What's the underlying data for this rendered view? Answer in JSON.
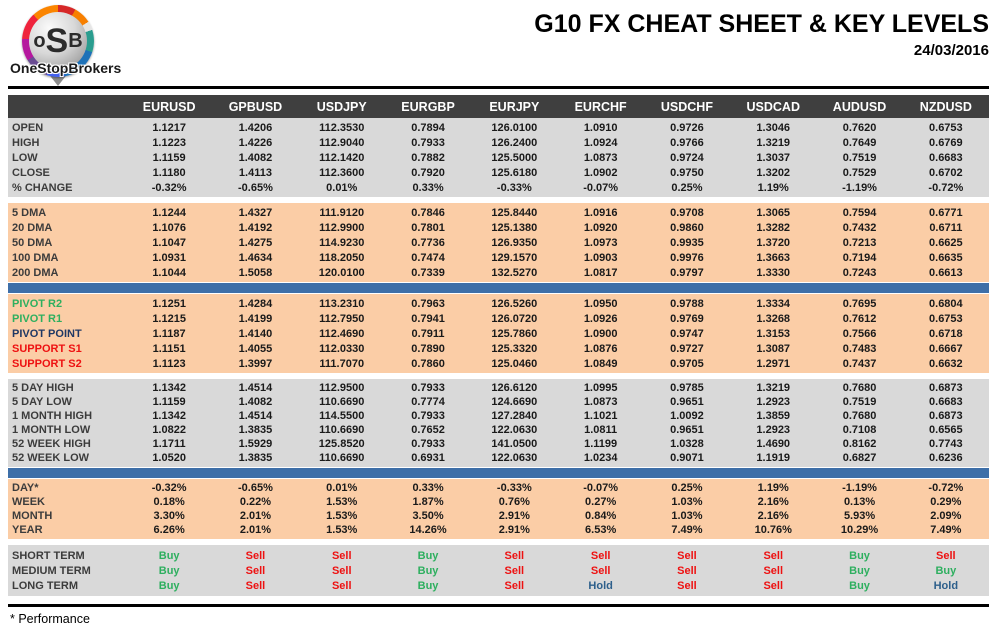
{
  "header": {
    "logo_monogram": {
      "o": "o",
      "s": "S",
      "b": "B"
    },
    "brand": "OneStopBrokers",
    "title": "G10 FX CHEAT SHEET & KEY LEVELS",
    "date": "24/03/2016"
  },
  "table": {
    "columns": [
      "EURUSD",
      "GPBUSD",
      "USDJPY",
      "EURGBP",
      "EURJPY",
      "EURCHF",
      "USDCHF",
      "USDCAD",
      "AUDUSD",
      "NZDUSD"
    ],
    "sections": [
      {
        "id": "ohlc",
        "bg": "gray",
        "separator_after": "white",
        "rows": [
          {
            "label": "OPEN",
            "values": [
              "1.1217",
              "1.4206",
              "112.3530",
              "0.7894",
              "126.0100",
              "1.0910",
              "0.9726",
              "1.3046",
              "0.7620",
              "0.6753"
            ]
          },
          {
            "label": "HIGH",
            "values": [
              "1.1223",
              "1.4226",
              "112.9040",
              "0.7933",
              "126.2400",
              "1.0924",
              "0.9766",
              "1.3219",
              "0.7649",
              "0.6769"
            ]
          },
          {
            "label": "LOW",
            "values": [
              "1.1159",
              "1.4082",
              "112.1420",
              "0.7882",
              "125.5000",
              "1.0873",
              "0.9724",
              "1.3037",
              "0.7519",
              "0.6683"
            ]
          },
          {
            "label": "CLOSE",
            "values": [
              "1.1180",
              "1.4113",
              "112.3600",
              "0.7920",
              "125.6180",
              "1.0902",
              "0.9750",
              "1.3202",
              "0.7529",
              "0.6702"
            ]
          },
          {
            "label": "% CHANGE",
            "values": [
              "-0.32%",
              "-0.65%",
              "0.01%",
              "0.33%",
              "-0.33%",
              "-0.07%",
              "0.25%",
              "1.19%",
              "-1.19%",
              "-0.72%"
            ]
          }
        ]
      },
      {
        "id": "dma",
        "bg": "peach",
        "separator_after": "blue",
        "rows": [
          {
            "label": "5 DMA",
            "values": [
              "1.1244",
              "1.4327",
              "111.9120",
              "0.7846",
              "125.8440",
              "1.0916",
              "0.9708",
              "1.3065",
              "0.7594",
              "0.6771"
            ]
          },
          {
            "label": "20 DMA",
            "values": [
              "1.1076",
              "1.4192",
              "112.9900",
              "0.7801",
              "125.1380",
              "1.0920",
              "0.9860",
              "1.3282",
              "0.7432",
              "0.6711"
            ]
          },
          {
            "label": "50 DMA",
            "values": [
              "1.1047",
              "1.4275",
              "114.9230",
              "0.7736",
              "126.9350",
              "1.0973",
              "0.9935",
              "1.3720",
              "0.7213",
              "0.6625"
            ]
          },
          {
            "label": "100 DMA",
            "values": [
              "1.0931",
              "1.4634",
              "118.2050",
              "0.7474",
              "129.1570",
              "1.0903",
              "0.9976",
              "1.3663",
              "0.7194",
              "0.6635"
            ]
          },
          {
            "label": "200 DMA",
            "values": [
              "1.1044",
              "1.5058",
              "120.0100",
              "0.7339",
              "132.5270",
              "1.0817",
              "0.9797",
              "1.3330",
              "0.7243",
              "0.6613"
            ]
          }
        ]
      },
      {
        "id": "pivots",
        "bg": "peach",
        "separator_after": "white",
        "rows": [
          {
            "label": "PIVOT R2",
            "label_color": "green",
            "values": [
              "1.1251",
              "1.4284",
              "113.2310",
              "0.7963",
              "126.5260",
              "1.0950",
              "0.9788",
              "1.3334",
              "0.7695",
              "0.6804"
            ]
          },
          {
            "label": "PIVOT R1",
            "label_color": "green",
            "values": [
              "1.1215",
              "1.4199",
              "112.7950",
              "0.7941",
              "126.0720",
              "1.0926",
              "0.9769",
              "1.3268",
              "0.7612",
              "0.6753"
            ]
          },
          {
            "label": "PIVOT POINT",
            "label_color": "navy",
            "values": [
              "1.1187",
              "1.4140",
              "112.4690",
              "0.7911",
              "125.7860",
              "1.0900",
              "0.9747",
              "1.3153",
              "0.7566",
              "0.6718"
            ]
          },
          {
            "label": "SUPPORT S1",
            "label_color": "red",
            "values": [
              "1.1151",
              "1.4055",
              "112.0330",
              "0.7890",
              "125.3320",
              "1.0876",
              "0.9727",
              "1.3087",
              "0.7483",
              "0.6667"
            ]
          },
          {
            "label": "SUPPORT S2",
            "label_color": "red",
            "values": [
              "1.1123",
              "1.3997",
              "111.7070",
              "0.7860",
              "125.0460",
              "1.0849",
              "0.9705",
              "1.2971",
              "0.7437",
              "0.6632"
            ]
          }
        ]
      },
      {
        "id": "ranges",
        "bg": "gray",
        "separator_after": "blue",
        "rows": [
          {
            "label": "5 DAY HIGH",
            "values": [
              "1.1342",
              "1.4514",
              "112.9500",
              "0.7933",
              "126.6120",
              "1.0995",
              "0.9785",
              "1.3219",
              "0.7680",
              "0.6873"
            ]
          },
          {
            "label": "5 DAY LOW",
            "values": [
              "1.1159",
              "1.4082",
              "110.6690",
              "0.7774",
              "124.6690",
              "1.0873",
              "0.9651",
              "1.2923",
              "0.7519",
              "0.6683"
            ]
          },
          {
            "label": "1 MONTH HIGH",
            "values": [
              "1.1342",
              "1.4514",
              "114.5500",
              "0.7933",
              "127.2840",
              "1.1021",
              "1.0092",
              "1.3859",
              "0.7680",
              "0.6873"
            ]
          },
          {
            "label": "1 MONTH LOW",
            "values": [
              "1.0822",
              "1.3835",
              "110.6690",
              "0.7652",
              "122.0630",
              "1.0811",
              "0.9651",
              "1.2923",
              "0.7108",
              "0.6565"
            ]
          },
          {
            "label": "52 WEEK HIGH",
            "values": [
              "1.1711",
              "1.5929",
              "125.8520",
              "0.7933",
              "141.0500",
              "1.1199",
              "1.0328",
              "1.4690",
              "0.8162",
              "0.7743"
            ]
          },
          {
            "label": "52 WEEK LOW",
            "values": [
              "1.0520",
              "1.3835",
              "110.6690",
              "0.6931",
              "122.0630",
              "1.0234",
              "0.9071",
              "1.1919",
              "0.6827",
              "0.6236"
            ]
          }
        ]
      },
      {
        "id": "perf",
        "bg": "peach",
        "separator_after": "white",
        "rows": [
          {
            "label": "DAY*",
            "values": [
              "-0.32%",
              "-0.65%",
              "0.01%",
              "0.33%",
              "-0.33%",
              "-0.07%",
              "0.25%",
              "1.19%",
              "-1.19%",
              "-0.72%"
            ]
          },
          {
            "label": "WEEK",
            "values": [
              "0.18%",
              "0.22%",
              "1.53%",
              "1.87%",
              "0.76%",
              "0.27%",
              "1.03%",
              "2.16%",
              "0.13%",
              "0.29%"
            ]
          },
          {
            "label": "MONTH",
            "values": [
              "3.30%",
              "2.01%",
              "1.53%",
              "3.50%",
              "2.91%",
              "0.84%",
              "1.03%",
              "2.16%",
              "5.93%",
              "2.09%"
            ]
          },
          {
            "label": "YEAR",
            "values": [
              "6.26%",
              "2.01%",
              "1.53%",
              "14.26%",
              "2.91%",
              "6.53%",
              "7.49%",
              "10.76%",
              "10.29%",
              "7.49%"
            ]
          }
        ]
      },
      {
        "id": "signals",
        "bg": "gray",
        "signals": true,
        "separator_after": "none",
        "rows": [
          {
            "label": "SHORT TERM",
            "values": [
              "Buy",
              "Sell",
              "Sell",
              "Buy",
              "Sell",
              "Sell",
              "Sell",
              "Sell",
              "Buy",
              "Sell"
            ]
          },
          {
            "label": "MEDIUM TERM",
            "values": [
              "Buy",
              "Sell",
              "Sell",
              "Buy",
              "Sell",
              "Sell",
              "Sell",
              "Sell",
              "Buy",
              "Buy"
            ]
          },
          {
            "label": "LONG TERM",
            "values": [
              "Buy",
              "Sell",
              "Sell",
              "Buy",
              "Sell",
              "Hold",
              "Sell",
              "Sell",
              "Buy",
              "Hold"
            ]
          }
        ]
      }
    ]
  },
  "footnote": "* Performance",
  "colors": {
    "header_row": "#3f3f3f",
    "gray_band": "#d9d9d9",
    "peach_band": "#fbcda6",
    "blue_divider": "#3e6fa8",
    "buy_green": "#2eaf5f",
    "sell_red": "#ee1111",
    "hold_blue": "#2d5f8b",
    "pivot_navy": "#1f3864"
  }
}
